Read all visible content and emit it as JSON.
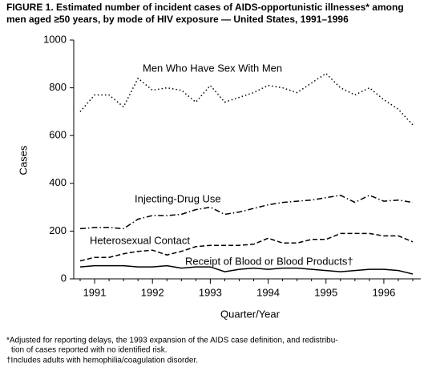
{
  "chart_data": {
    "type": "line",
    "title": [
      "FIGURE 1. Estimated number of incident cases of AIDS-opportunistic illnesses* among",
      "men aged ≥50 years, by mode of HIV exposure — United States, 1991–1996"
    ],
    "x_label": "Quarter/Year",
    "y_label": "Cases",
    "categories": [
      null,
      "1991",
      null,
      null,
      null,
      "1992",
      null,
      null,
      null,
      "1993",
      null,
      null,
      null,
      "1994",
      null,
      null,
      null,
      "1995",
      null,
      null,
      null,
      "1996",
      null,
      null
    ],
    "ylim": [
      0,
      1000
    ],
    "yticks": [
      0,
      200,
      400,
      600,
      800,
      1000
    ],
    "grid": false,
    "series": [
      {
        "name": "Men Who Have Sex With Men",
        "color": "#000000",
        "dash": "dotted",
        "values": [
          700,
          770,
          770,
          720,
          840,
          790,
          800,
          790,
          740,
          810,
          740,
          760,
          780,
          810,
          800,
          780,
          820,
          860,
          800,
          770,
          800,
          750,
          710,
          645
        ]
      },
      {
        "name": "Injecting-Drug Use",
        "color": "#000000",
        "dash": "dashdot",
        "values": [
          210,
          215,
          215,
          210,
          250,
          265,
          265,
          270,
          290,
          300,
          270,
          280,
          295,
          310,
          320,
          325,
          330,
          340,
          350,
          320,
          350,
          325,
          330,
          320
        ]
      },
      {
        "name": "Heterosexual Contact",
        "color": "#000000",
        "dash": "dashed",
        "values": [
          75,
          90,
          90,
          105,
          115,
          120,
          100,
          115,
          135,
          140,
          140,
          140,
          145,
          170,
          150,
          150,
          165,
          165,
          190,
          190,
          190,
          180,
          180,
          155
        ]
      },
      {
        "name": "Receipt of Blood or Blood Products†",
        "color": "#000000",
        "dash": "solid",
        "values": [
          50,
          55,
          55,
          55,
          50,
          50,
          55,
          45,
          50,
          50,
          30,
          40,
          45,
          40,
          45,
          45,
          40,
          35,
          30,
          35,
          40,
          40,
          35,
          20
        ]
      }
    ],
    "footnotes": [
      [
        "*Adjusted for reporting delays, the 1993 expansion of the AIDS case definition, and redistribu-",
        "tion of cases reported with no identified risk."
      ],
      [
        "†Includes adults with hemophilia/coagulation disorder."
      ]
    ]
  }
}
